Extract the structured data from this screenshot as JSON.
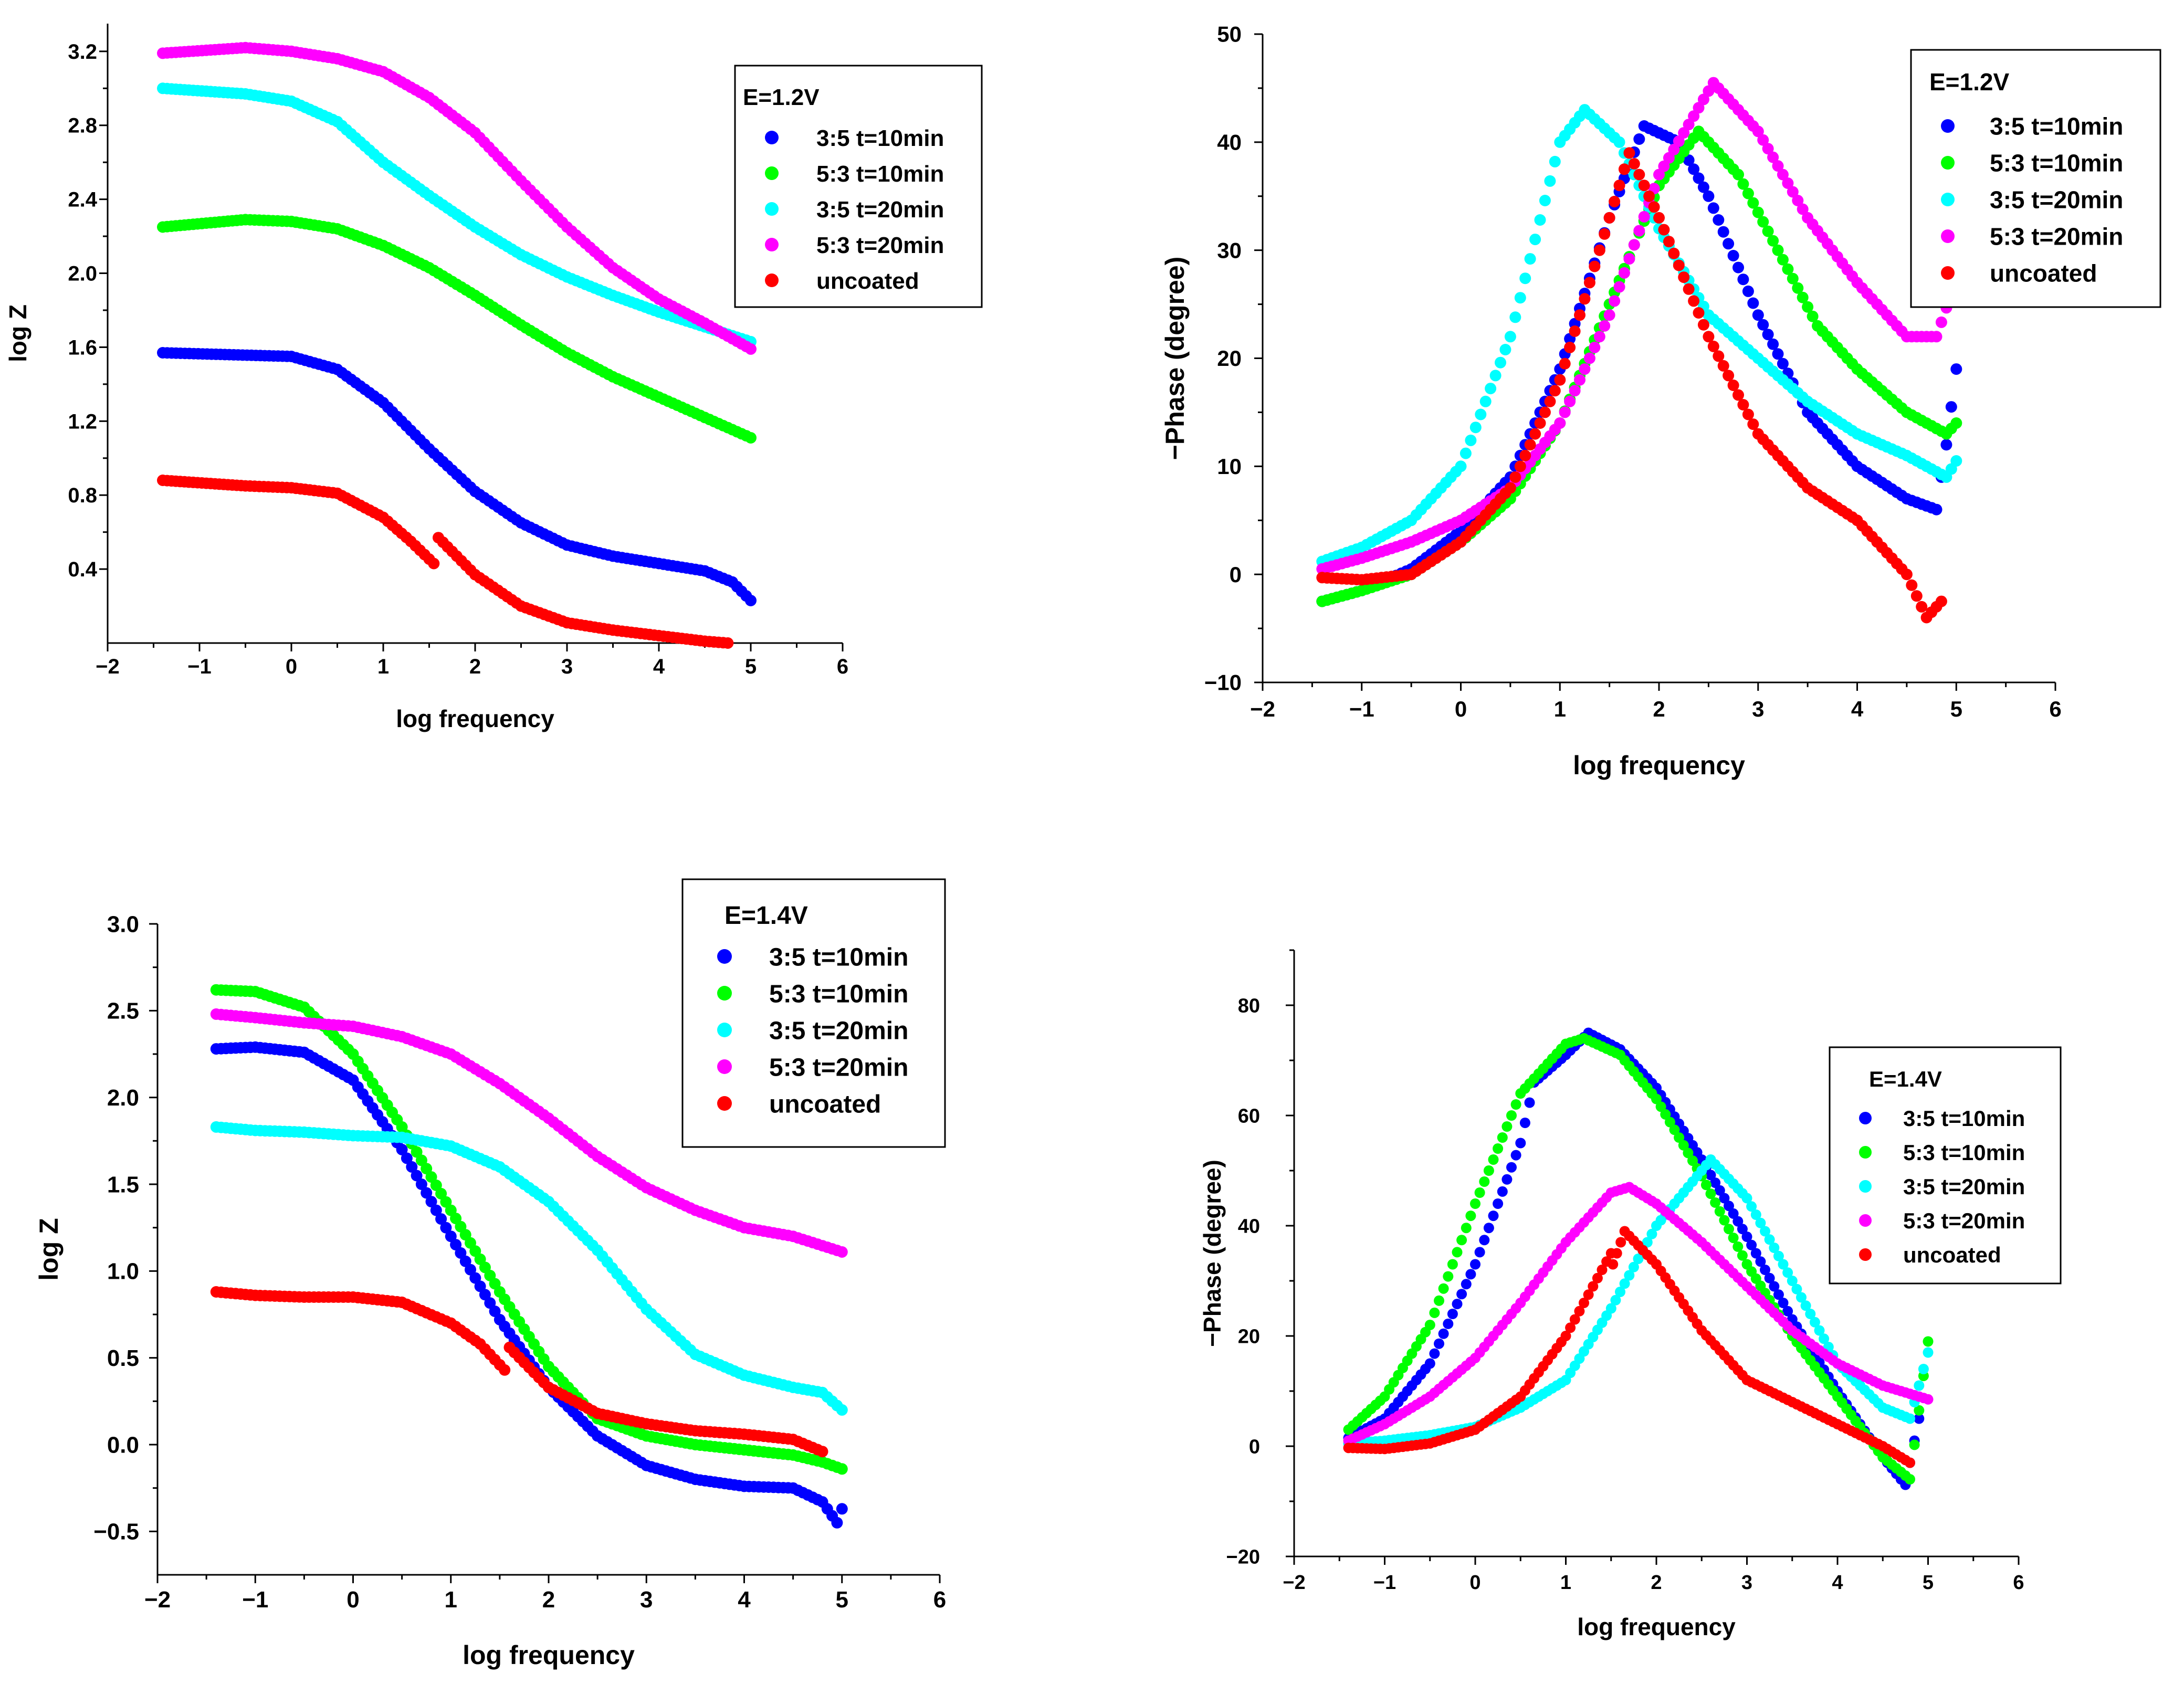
{
  "chart_data": [
    {
      "id": "p1",
      "type": "scatter",
      "title": "",
      "xlabel": "log frequency",
      "ylabel": "log Z",
      "xlim": [
        -2,
        6
      ],
      "ylim": [
        0,
        3.35
      ],
      "xticks": [
        -2,
        -1,
        0,
        1,
        2,
        3,
        4,
        5,
        6
      ],
      "yticks": [
        0.4,
        0.8,
        1.2,
        1.6,
        2.0,
        2.4,
        2.8,
        3.2
      ],
      "ytick_labels": [
        "0.4",
        "0.8",
        "1.2",
        "1.6",
        "2.0",
        "2.4",
        "2.8",
        "3.2"
      ],
      "legend_title": "E=1.2V",
      "legend_position": "top-right",
      "series": [
        {
          "name": "3:5 t=10min",
          "color": "#0000ff",
          "x": [
            -1.4,
            0,
            0.5,
            1,
            1.5,
            2,
            2.5,
            3,
            3.5,
            4,
            4.5,
            4.8,
            5.0
          ],
          "y": [
            1.57,
            1.55,
            1.48,
            1.3,
            1.05,
            0.82,
            0.65,
            0.53,
            0.47,
            0.43,
            0.39,
            0.33,
            0.23
          ]
        },
        {
          "name": "5:3 t=10min",
          "color": "#00ff00",
          "x": [
            -1.4,
            -0.5,
            0,
            0.5,
            1,
            1.5,
            2,
            2.5,
            3,
            3.5,
            4,
            4.5,
            5.0
          ],
          "y": [
            2.25,
            2.29,
            2.28,
            2.24,
            2.15,
            2.03,
            1.88,
            1.72,
            1.57,
            1.44,
            1.33,
            1.22,
            1.11
          ]
        },
        {
          "name": "3:5 t=20min",
          "color": "#00ffff",
          "x": [
            -1.4,
            -0.5,
            0,
            0.5,
            1,
            1.5,
            2,
            2.5,
            3,
            3.5,
            4,
            4.5,
            5.0
          ],
          "y": [
            3.0,
            2.97,
            2.93,
            2.82,
            2.6,
            2.42,
            2.25,
            2.1,
            1.98,
            1.88,
            1.79,
            1.71,
            1.63
          ]
        },
        {
          "name": "5:3 t=20min",
          "color": "#ff00ff",
          "x": [
            -1.4,
            -0.5,
            0,
            0.5,
            1,
            1.5,
            2,
            2.5,
            3,
            3.5,
            4,
            4.5,
            5.0
          ],
          "y": [
            3.19,
            3.22,
            3.2,
            3.16,
            3.09,
            2.95,
            2.76,
            2.5,
            2.25,
            2.03,
            1.86,
            1.73,
            1.59
          ]
        },
        {
          "name": "uncoated",
          "color": "#ff0000",
          "x": [
            -1.4,
            -0.5,
            0,
            0.5,
            1,
            1.3,
            1.55,
            1.6,
            2,
            2.5,
            3,
            3.5,
            4,
            4.5,
            4.75
          ],
          "y": [
            0.88,
            0.85,
            0.84,
            0.81,
            0.68,
            0.55,
            0.43,
            0.57,
            0.37,
            0.2,
            0.11,
            0.07,
            0.04,
            0.01,
            0.0
          ]
        }
      ]
    },
    {
      "id": "p2",
      "type": "scatter",
      "title": "",
      "xlabel": "log frequency",
      "ylabel": "−Phase (degree)",
      "xlim": [
        -2,
        6
      ],
      "ylim": [
        -10,
        50
      ],
      "xticks": [
        -2,
        -1,
        0,
        1,
        2,
        3,
        4,
        5,
        6
      ],
      "yticks": [
        -10,
        0,
        10,
        20,
        30,
        40,
        50
      ],
      "legend_title": "E=1.2V",
      "legend_position": "top-right",
      "series": [
        {
          "name": "3:5 t=10min",
          "color": "#0000ff",
          "x": [
            -1.4,
            -1,
            -0.5,
            0,
            0.5,
            1,
            1.5,
            1.85,
            2.2,
            2.5,
            3,
            3.5,
            4,
            4.5,
            4.8,
            4.9,
            5.0
          ],
          "y": [
            -2.5,
            -1.5,
            0.5,
            4,
            9,
            19,
            33,
            41.5,
            40,
            35,
            24,
            15,
            10,
            7,
            6,
            12,
            19
          ]
        },
        {
          "name": "5:3 t=10min",
          "color": "#00ff00",
          "x": [
            -1.4,
            -1,
            -0.5,
            0,
            0.5,
            1,
            1.5,
            2,
            2.4,
            2.8,
            3.2,
            3.6,
            4,
            4.5,
            4.9,
            5.0
          ],
          "y": [
            -2.5,
            -1.5,
            0,
            3,
            7,
            14,
            25,
            36,
            41,
            37,
            30,
            23,
            19,
            15,
            13,
            14
          ]
        },
        {
          "name": "3:5 t=20min",
          "color": "#00ffff",
          "x": [
            -1.4,
            -1,
            -0.5,
            0,
            0.5,
            1,
            1.25,
            1.6,
            2,
            2.5,
            3,
            3.5,
            4,
            4.5,
            4.9,
            5.0
          ],
          "y": [
            1.2,
            2.5,
            5,
            10,
            22,
            40,
            43,
            40,
            32,
            24,
            20,
            16,
            13,
            11,
            9,
            10.5
          ]
        },
        {
          "name": "5:3 t=20min",
          "color": "#ff00ff",
          "x": [
            -1.4,
            -1,
            -0.5,
            0,
            0.5,
            1,
            1.5,
            2,
            2.55,
            3,
            3.5,
            4,
            4.5,
            4.8,
            4.95
          ],
          "y": [
            0.5,
            1.5,
            3,
            5,
            8,
            14,
            24,
            37,
            45.5,
            41,
            33,
            27,
            22,
            22,
            26
          ]
        },
        {
          "name": "uncoated",
          "color": "#ff0000",
          "x": [
            -1.4,
            -1,
            -0.5,
            0,
            0.5,
            1,
            1.5,
            1.7,
            2,
            2.5,
            3,
            3.5,
            4,
            4.5,
            4.7,
            4.85
          ],
          "y": [
            -0.3,
            -0.5,
            0,
            3,
            8,
            18,
            33,
            39,
            33,
            22,
            13,
            8,
            5,
            0,
            -4,
            -2.5
          ]
        }
      ]
    },
    {
      "id": "p3",
      "type": "scatter",
      "title": "",
      "xlabel": "log frequency",
      "ylabel": "log Z",
      "xlim": [
        -2,
        6
      ],
      "ylim": [
        -0.75,
        3.0
      ],
      "xticks": [
        -2,
        -1,
        0,
        1,
        2,
        3,
        4,
        5,
        6
      ],
      "yticks": [
        -0.5,
        0.0,
        0.5,
        1.0,
        1.5,
        2.0,
        2.5,
        3.0
      ],
      "ytick_labels": [
        "−0.5",
        "0.0",
        "0.5",
        "1.0",
        "1.5",
        "2.0",
        "2.5",
        "3.0"
      ],
      "legend_title": "E=1.4V",
      "legend_position": "top-right",
      "series": [
        {
          "name": "3:5 t=10min",
          "color": "#0000ff",
          "x": [
            -1.4,
            -1,
            -0.5,
            0,
            0.5,
            1,
            1.5,
            2,
            2.5,
            3,
            3.5,
            4,
            4.5,
            4.8,
            4.95,
            5.0
          ],
          "y": [
            2.28,
            2.29,
            2.26,
            2.1,
            1.7,
            1.2,
            0.72,
            0.33,
            0.05,
            -0.12,
            -0.2,
            -0.24,
            -0.25,
            -0.33,
            -0.45,
            -0.37
          ]
        },
        {
          "name": "5:3 t=10min",
          "color": "#00ff00",
          "x": [
            -1.4,
            -1,
            -0.5,
            0,
            0.5,
            1,
            1.5,
            2,
            2.5,
            3,
            3.5,
            4,
            4.5,
            4.8,
            5.0
          ],
          "y": [
            2.62,
            2.61,
            2.52,
            2.25,
            1.83,
            1.35,
            0.88,
            0.45,
            0.15,
            0.05,
            0.0,
            -0.03,
            -0.06,
            -0.1,
            -0.14
          ]
        },
        {
          "name": "3:5 t=20min",
          "color": "#00ffff",
          "x": [
            -1.4,
            -1,
            -0.5,
            0,
            0.5,
            1,
            1.5,
            2,
            2.5,
            3,
            3.5,
            4,
            4.5,
            4.8,
            5.0
          ],
          "y": [
            1.83,
            1.81,
            1.8,
            1.78,
            1.77,
            1.72,
            1.6,
            1.4,
            1.12,
            0.78,
            0.52,
            0.4,
            0.33,
            0.3,
            0.2
          ]
        },
        {
          "name": "5:3 t=20min",
          "color": "#ff00ff",
          "x": [
            -1.4,
            -1,
            -0.5,
            0,
            0.5,
            1,
            1.5,
            2,
            2.5,
            3,
            3.5,
            4,
            4.5,
            5.0
          ],
          "y": [
            2.48,
            2.46,
            2.43,
            2.41,
            2.35,
            2.25,
            2.08,
            1.88,
            1.66,
            1.48,
            1.35,
            1.25,
            1.2,
            1.11
          ]
        },
        {
          "name": "uncoated",
          "color": "#ff0000",
          "x": [
            -1.4,
            -1,
            -0.5,
            0,
            0.5,
            1,
            1.3,
            1.55,
            1.6,
            2,
            2.5,
            3,
            3.5,
            4,
            4.5,
            4.8
          ],
          "y": [
            0.88,
            0.86,
            0.85,
            0.85,
            0.82,
            0.7,
            0.58,
            0.43,
            0.56,
            0.33,
            0.18,
            0.12,
            0.08,
            0.06,
            0.03,
            -0.04
          ]
        }
      ]
    },
    {
      "id": "p4",
      "type": "scatter",
      "title": "",
      "xlabel": "log frequency",
      "ylabel": "−Phase (degree)",
      "xlim": [
        -2,
        6
      ],
      "ylim": [
        -20,
        90
      ],
      "xticks": [
        -2,
        -1,
        0,
        1,
        2,
        3,
        4,
        5,
        6
      ],
      "yticks": [
        -20,
        0,
        20,
        40,
        60,
        80
      ],
      "legend_title": "E=1.4V",
      "legend_position": "center-right",
      "series": [
        {
          "name": "3:5 t=10min",
          "color": "#0000ff",
          "x": [
            -1.4,
            -1,
            -0.5,
            0,
            0.5,
            0.65,
            1,
            1.25,
            1.6,
            2,
            2.5,
            3,
            3.5,
            4,
            4.5,
            4.75,
            4.9
          ],
          "y": [
            1.5,
            5,
            15,
            33,
            55,
            66,
            71,
            75,
            72,
            65,
            52,
            38,
            23,
            10,
            -2,
            -7,
            5
          ]
        },
        {
          "name": "5:3 t=10min",
          "color": "#00ff00",
          "x": [
            -1.4,
            -1,
            -0.5,
            0,
            0.5,
            1,
            1.2,
            1.6,
            2,
            2.5,
            3,
            3.5,
            4,
            4.5,
            4.8,
            5.0
          ],
          "y": [
            3,
            9,
            22,
            44,
            64,
            73,
            74,
            71,
            63,
            49,
            33,
            20,
            9,
            -2,
            -6,
            19
          ]
        },
        {
          "name": "3:5 t=20min",
          "color": "#00ffff",
          "x": [
            -1.4,
            -1,
            -0.5,
            0,
            0.5,
            1,
            1.5,
            2,
            2.5,
            2.6,
            3,
            3.5,
            4,
            4.5,
            4.8,
            5.0
          ],
          "y": [
            0.5,
            1,
            2,
            3.5,
            7,
            12,
            25,
            40,
            50,
            52,
            45,
            30,
            15,
            7,
            5,
            17
          ]
        },
        {
          "name": "5:3 t=20min",
          "color": "#ff00ff",
          "x": [
            -1.4,
            -1,
            -0.5,
            0,
            0.5,
            1,
            1.5,
            1.7,
            2,
            2.5,
            3,
            3.5,
            4,
            4.5,
            5.0
          ],
          "y": [
            1,
            4,
            9,
            16,
            26,
            37,
            46,
            47,
            44,
            37,
            29,
            21,
            15,
            11,
            8.5
          ]
        },
        {
          "name": "uncoated",
          "color": "#ff0000",
          "x": [
            -1.4,
            -1,
            -0.5,
            0,
            0.5,
            1,
            1.5,
            1.52,
            1.65,
            2,
            2.5,
            3,
            3.5,
            4,
            4.5,
            4.8
          ],
          "y": [
            -0.3,
            -0.5,
            0.5,
            3,
            9,
            20,
            35,
            33,
            39,
            33,
            21,
            12,
            8,
            4,
            0,
            -3
          ]
        }
      ]
    }
  ]
}
